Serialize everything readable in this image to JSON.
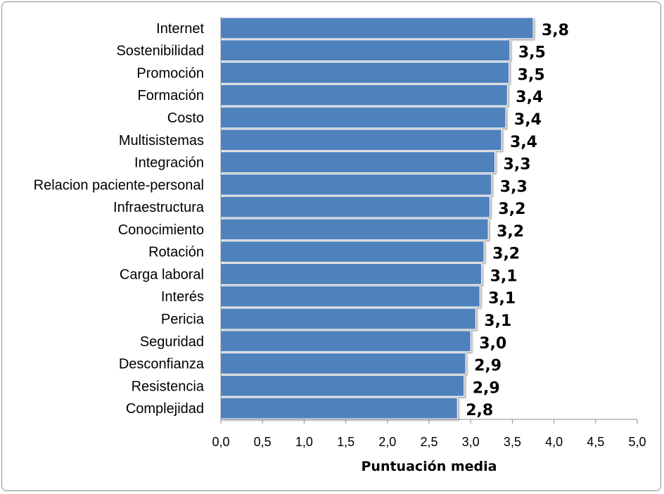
{
  "chart_data": {
    "type": "bar",
    "orientation": "horizontal",
    "categories": [
      "Internet",
      "Sostenibilidad",
      "Promoción",
      "Formación",
      "Costo",
      "Multisistemas",
      "Integración",
      "Relacion paciente-personal",
      "Infraestructura",
      "Conocimiento",
      "Rotación",
      "Carga laboral",
      "Interés ",
      "Pericia",
      "Seguridad",
      "Desconfianza",
      "Resistencia",
      "Complejidad"
    ],
    "values": [
      3.75,
      3.47,
      3.46,
      3.44,
      3.42,
      3.37,
      3.29,
      3.25,
      3.23,
      3.21,
      3.16,
      3.13,
      3.11,
      3.06,
      3.0,
      2.94,
      2.92,
      2.84
    ],
    "value_labels": [
      "3,8",
      "3,5",
      "3,5",
      "3,4",
      "3,4",
      "3,4",
      "3,3",
      "3,3",
      "3,2",
      "3,2",
      "3,2",
      "3,1",
      "3,1",
      "3,1",
      "3,0",
      "2,9",
      "2,9",
      "2,8"
    ],
    "xlim": [
      0,
      5
    ],
    "x_ticks": [
      "0,0",
      "0,5",
      "1,0",
      "1,5",
      "2,0",
      "2,5",
      "3,0",
      "3,5",
      "4,0",
      "4,5",
      "5,0"
    ],
    "xlabel": "Puntuación media",
    "ylabel": "",
    "title": "",
    "grid": false,
    "legend": "none",
    "bar_color": "#4f81bd"
  }
}
